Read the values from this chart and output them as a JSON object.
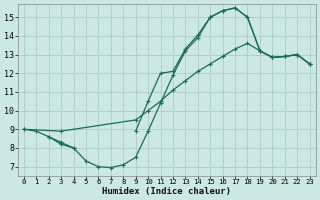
{
  "xlabel": "Humidex (Indice chaleur)",
  "xlim": [
    -0.5,
    23.5
  ],
  "ylim": [
    6.5,
    15.7
  ],
  "xticks": [
    0,
    1,
    2,
    3,
    4,
    5,
    6,
    7,
    8,
    9,
    10,
    11,
    12,
    13,
    14,
    15,
    16,
    17,
    18,
    19,
    20,
    21,
    22,
    23
  ],
  "yticks": [
    7,
    8,
    9,
    10,
    11,
    12,
    13,
    14,
    15
  ],
  "bg_color": "#cce8e4",
  "grid_color": "#aaccca",
  "line_color": "#1a6b5a",
  "curve1_x": [
    0,
    1,
    2,
    3,
    4,
    5,
    6,
    7,
    8,
    9,
    10,
    11,
    12,
    13,
    14,
    15,
    16,
    17,
    18,
    19,
    20,
    21,
    22,
    23
  ],
  "curve1_y": [
    9.0,
    8.9,
    8.6,
    8.2,
    8.0,
    7.3,
    7.0,
    6.95,
    7.1,
    7.5,
    8.9,
    10.4,
    11.9,
    13.2,
    13.9,
    15.0,
    15.35,
    15.5,
    15.0,
    13.2,
    12.85,
    12.9,
    13.0,
    12.5
  ],
  "curve2_x": [
    2,
    3,
    4,
    9,
    10,
    11,
    12,
    13,
    14,
    15,
    16,
    17,
    18,
    19,
    20,
    21,
    22,
    23
  ],
  "curve2_y": [
    8.6,
    8.3,
    8.0,
    8.9,
    10.5,
    12.0,
    12.1,
    13.3,
    14.05,
    15.0,
    15.35,
    15.5,
    15.0,
    13.2,
    12.85,
    12.9,
    13.0,
    12.5
  ],
  "curve3_x": [
    0,
    3,
    9,
    10,
    11,
    12,
    13,
    14,
    15,
    16,
    17,
    18,
    19,
    20,
    21,
    22,
    23
  ],
  "curve3_y": [
    9.0,
    8.9,
    9.5,
    10.0,
    10.5,
    11.1,
    11.6,
    12.1,
    12.5,
    12.9,
    13.3,
    13.6,
    13.2,
    12.85,
    12.9,
    13.0,
    12.5
  ]
}
